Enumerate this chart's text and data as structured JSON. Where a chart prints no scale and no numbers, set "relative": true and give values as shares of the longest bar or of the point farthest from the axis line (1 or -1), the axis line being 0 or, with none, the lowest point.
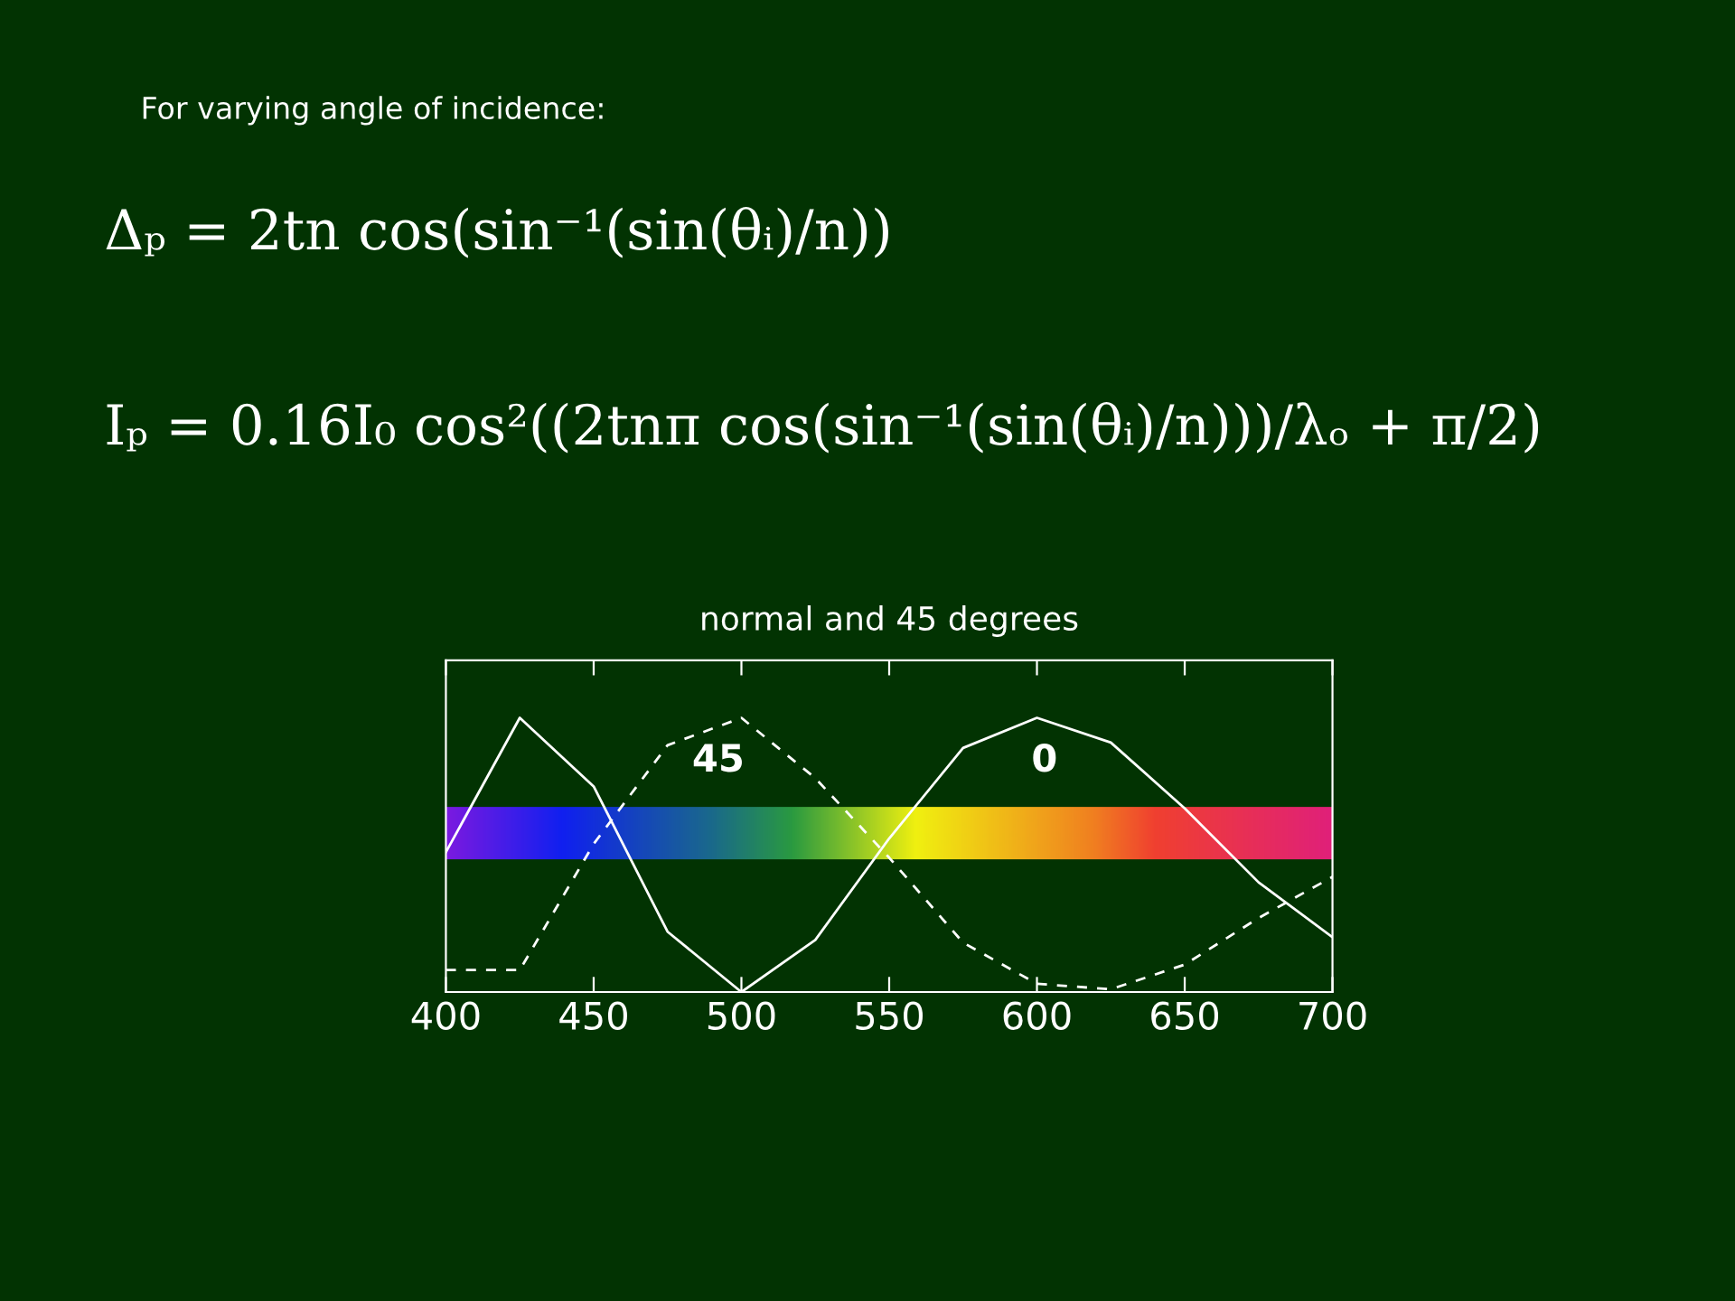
{
  "chart_data": {
    "type": "line",
    "title": "normal and 45 degrees",
    "relative": true,
    "x": [
      400,
      425,
      450,
      475,
      500,
      525,
      550,
      575,
      600,
      625,
      650,
      675,
      700
    ],
    "xlim": [
      400,
      700
    ],
    "xticks": [
      400,
      450,
      500,
      550,
      600,
      650,
      700
    ],
    "series": [
      {
        "color": "#ffffff",
        "line_style": "solid",
        "values": [
          0.51,
          1.0,
          0.75,
          0.22,
          0.0,
          0.19,
          0.56,
          0.89,
          1.0,
          0.91,
          0.67,
          0.4,
          0.2
        ]
      },
      {
        "color": "#ffffff",
        "line_style": "dashed",
        "values": [
          0.08,
          0.08,
          0.54,
          0.9,
          1.0,
          0.78,
          0.49,
          0.18,
          0.03,
          0.01,
          0.1,
          0.27,
          0.42
        ]
      }
    ],
    "annotations": [
      "For varying angle of incidence:",
      "Δₚ = 2tn cos(sin⁻¹(sin(θᵢ)/n))",
      "Iₚ = 0.16I₀ cos²((2tnπ cos(sin⁻¹(sin(θᵢ)/n)))/λₒ + π/2)",
      "45",
      "0"
    ],
    "grid": false,
    "legend": false,
    "marker": "none"
  }
}
